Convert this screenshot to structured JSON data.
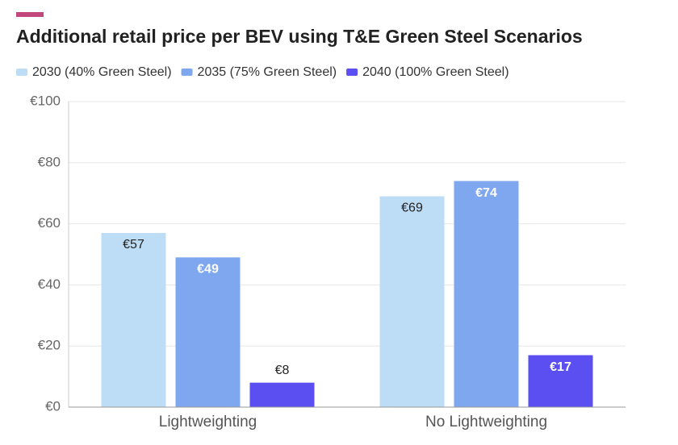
{
  "chart_data": {
    "type": "bar",
    "title": "Additional retail price per BEV using T&E Green Steel Scenarios",
    "categories": [
      "Lightweighting",
      "No Lightweighting"
    ],
    "series": [
      {
        "name": "2030 (40% Green Steel)",
        "color": "#bddcf5",
        "values": [
          57,
          69
        ],
        "value_labels": [
          "€57",
          "€69"
        ]
      },
      {
        "name": "2035 (75% Green Steel)",
        "color": "#7fa7ef",
        "values": [
          49,
          74
        ],
        "value_labels": [
          "€49",
          "€74"
        ]
      },
      {
        "name": "2040 (100% Green Steel)",
        "color": "#5b4ff2",
        "values": [
          8,
          17
        ],
        "value_labels": [
          "€8",
          "€17"
        ]
      }
    ],
    "ylim": [
      0,
      100
    ],
    "yticks": [
      {
        "value": 0,
        "label": "€0"
      },
      {
        "value": 20,
        "label": "€20"
      },
      {
        "value": 40,
        "label": "€40"
      },
      {
        "value": 60,
        "label": "€60"
      },
      {
        "value": 80,
        "label": "€80"
      },
      {
        "value": 100,
        "label": "€100"
      }
    ],
    "grid": true
  }
}
